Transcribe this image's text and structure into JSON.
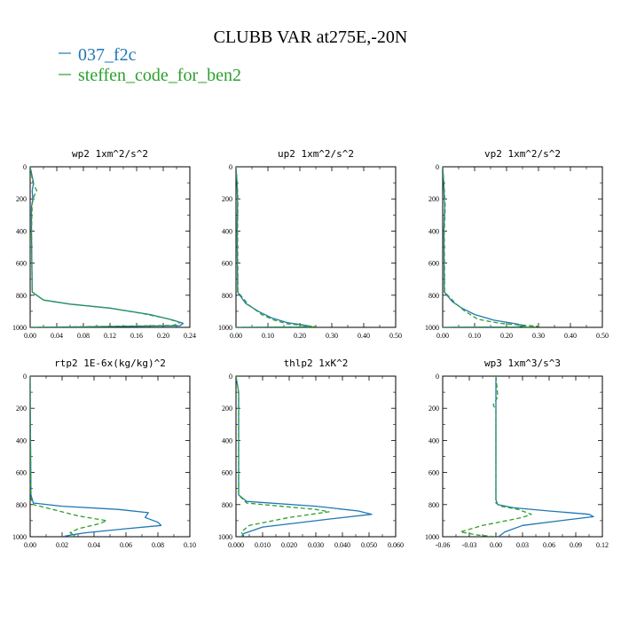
{
  "title": "CLUBB VAR at275E,-20N",
  "legend": [
    {
      "label": "037_f2c",
      "color": "#1f77b4"
    },
    {
      "label": "steffen_code_for_ben2",
      "color": "#2ca02c"
    }
  ],
  "chart_data": [
    {
      "type": "line",
      "title": "wp2  1xm^2/s^2",
      "xlim": [
        0,
        0.24
      ],
      "ylim": [
        1000,
        0
      ],
      "xticks": [
        "0.00",
        "0.04",
        "0.08",
        "0.12",
        "0.16",
        "0.20",
        "0.24"
      ],
      "yticks": [
        "0",
        "200",
        "400",
        "600",
        "800",
        "1000"
      ],
      "series": [
        {
          "name": "037_f2c",
          "color": "#1f77b4",
          "dash": "none",
          "x": [
            0,
            0.005,
            0.003,
            0.004,
            0.002,
            0.002,
            0.003,
            0.02,
            0.06,
            0.12,
            0.18,
            0.215,
            0.23,
            0.225,
            0.05,
            0
          ],
          "y": [
            0,
            100,
            150,
            200,
            250,
            400,
            780,
            830,
            855,
            880,
            920,
            955,
            975,
            990,
            998,
            1000
          ]
        },
        {
          "name": "steffen_code_for_ben2",
          "color": "#2ca02c",
          "dash": "5,3",
          "x": [
            0,
            0.004,
            0.01,
            0.006,
            0.003,
            0.002,
            0.003,
            0.02,
            0.06,
            0.12,
            0.17,
            0.205,
            0.225,
            0.215,
            0.04,
            0
          ],
          "y": [
            0,
            100,
            150,
            180,
            230,
            400,
            780,
            830,
            855,
            880,
            915,
            945,
            970,
            988,
            998,
            1000
          ]
        }
      ]
    },
    {
      "type": "line",
      "title": "up2  1xm^2/s^2",
      "xlim": [
        0,
        0.5
      ],
      "ylim": [
        1000,
        0
      ],
      "xticks": [
        "0.00",
        "0.10",
        "0.20",
        "0.30",
        "0.40",
        "0.50"
      ],
      "yticks": [
        "0",
        "200",
        "400",
        "600",
        "800",
        "1000"
      ],
      "series": [
        {
          "name": "037_f2c",
          "color": "#1f77b4",
          "dash": "none",
          "x": [
            0,
            0.003,
            0.005,
            0.004,
            0.005,
            0.03,
            0.07,
            0.11,
            0.16,
            0.21,
            0.23,
            0.21,
            0
          ],
          "y": [
            0,
            100,
            200,
            400,
            780,
            850,
            900,
            940,
            970,
            985,
            992,
            997,
            1000
          ]
        },
        {
          "name": "steffen_code_for_ben2",
          "color": "#2ca02c",
          "dash": "5,3",
          "x": [
            0,
            0.004,
            0.006,
            0.005,
            0.006,
            0.04,
            0.08,
            0.12,
            0.16,
            0.22,
            0.25,
            0.22,
            0
          ],
          "y": [
            0,
            100,
            200,
            400,
            780,
            860,
            920,
            955,
            978,
            990,
            995,
            998,
            1000
          ]
        }
      ]
    },
    {
      "type": "line",
      "title": "vp2  1xm^2/s^2",
      "xlim": [
        0,
        0.5
      ],
      "ylim": [
        1000,
        0
      ],
      "xticks": [
        "0.00",
        "0.10",
        "0.20",
        "0.30",
        "0.40",
        "0.50"
      ],
      "yticks": [
        "0",
        "200",
        "400",
        "600",
        "800",
        "1000"
      ],
      "series": [
        {
          "name": "037_f2c",
          "color": "#1f77b4",
          "dash": "none",
          "x": [
            0,
            0.003,
            0.006,
            0.004,
            0.005,
            0.03,
            0.06,
            0.1,
            0.16,
            0.23,
            0.26,
            0.23,
            0
          ],
          "y": [
            0,
            100,
            250,
            400,
            780,
            840,
            880,
            920,
            955,
            978,
            990,
            997,
            1000
          ]
        },
        {
          "name": "steffen_code_for_ben2",
          "color": "#2ca02c",
          "dash": "5,3",
          "x": [
            0,
            0.004,
            0.008,
            0.005,
            0.006,
            0.04,
            0.07,
            0.11,
            0.18,
            0.26,
            0.3,
            0.26,
            0
          ],
          "y": [
            0,
            100,
            250,
            400,
            780,
            850,
            900,
            950,
            975,
            988,
            994,
            998,
            1000
          ]
        }
      ]
    },
    {
      "type": "line",
      "title": "rtp2  1E-6x(kg/kg)^2",
      "xlim": [
        0,
        0.1
      ],
      "ylim": [
        1000,
        0
      ],
      "xticks": [
        "0.00",
        "0.02",
        "0.04",
        "0.06",
        "0.08",
        "0.10"
      ],
      "yticks": [
        "0",
        "200",
        "400",
        "600",
        "800",
        "1000"
      ],
      "series": [
        {
          "name": "037_f2c",
          "color": "#1f77b4",
          "dash": "none",
          "x": [
            0,
            0.0002,
            0.0005,
            0.002,
            0.02,
            0.055,
            0.074,
            0.072,
            0.08,
            0.082,
            0.06,
            0.035,
            0.025,
            0.02
          ],
          "y": [
            0,
            400,
            740,
            790,
            810,
            830,
            850,
            880,
            910,
            930,
            950,
            975,
            990,
            1000
          ]
        },
        {
          "name": "steffen_code_for_ben2",
          "color": "#2ca02c",
          "dash": "5,3",
          "x": [
            0,
            0.0002,
            0.0005,
            0.002,
            0.018,
            0.03,
            0.042,
            0.048,
            0.043,
            0.03,
            0.025,
            0.028,
            0.027
          ],
          "y": [
            0,
            400,
            760,
            800,
            840,
            870,
            890,
            900,
            920,
            950,
            975,
            990,
            1000
          ]
        }
      ]
    },
    {
      "type": "line",
      "title": "thlp2  1xK^2",
      "xlim": [
        0,
        0.06
      ],
      "ylim": [
        1000,
        0
      ],
      "xticks": [
        "0.000",
        "0.010",
        "0.020",
        "0.030",
        "0.040",
        "0.050",
        "0.060"
      ],
      "yticks": [
        "0",
        "200",
        "400",
        "600",
        "800",
        "1000"
      ],
      "series": [
        {
          "name": "037_f2c",
          "color": "#1f77b4",
          "dash": "none",
          "x": [
            0,
            0.001,
            0.001,
            0.001,
            0.004,
            0.03,
            0.046,
            0.051,
            0.035,
            0.01,
            0.003,
            0.002
          ],
          "y": [
            0,
            100,
            400,
            740,
            780,
            810,
            840,
            860,
            890,
            940,
            980,
            1000
          ]
        },
        {
          "name": "steffen_code_for_ben2",
          "color": "#2ca02c",
          "dash": "5,3",
          "x": [
            0,
            0.001,
            0.001,
            0.001,
            0.004,
            0.02,
            0.03,
            0.035,
            0.02,
            0.005,
            0.002,
            0.003
          ],
          "y": [
            0,
            100,
            400,
            740,
            790,
            815,
            830,
            845,
            880,
            930,
            970,
            1000
          ]
        }
      ]
    },
    {
      "type": "line",
      "title": "wp3  1xm^3/s^3",
      "xlim": [
        -0.06,
        0.12
      ],
      "ylim": [
        1000,
        0
      ],
      "xticks": [
        "-0.06",
        "-0.03",
        "0.00",
        "0.03",
        "0.06",
        "0.09",
        "0.12"
      ],
      "yticks": [
        "0",
        "200",
        "400",
        "600",
        "800",
        "1000"
      ],
      "series": [
        {
          "name": "037_f2c",
          "color": "#1f77b4",
          "dash": "none",
          "x": [
            0,
            0,
            0,
            0,
            0.002,
            0.02,
            0.06,
            0.105,
            0.11,
            0.08,
            0.03,
            0.01,
            0.003
          ],
          "y": [
            0,
            200,
            400,
            770,
            800,
            820,
            840,
            860,
            875,
            895,
            930,
            970,
            1000
          ]
        },
        {
          "name": "steffen_code_for_ben2",
          "color": "#2ca02c",
          "dash": "5,3",
          "x": [
            0,
            0.002,
            0.001,
            -0.003,
            0.0,
            0.0,
            0.0,
            0.0,
            0.005,
            0.025,
            0.04,
            0.03,
            -0.015,
            -0.04,
            -0.02,
            0
          ],
          "y": [
            0,
            120,
            140,
            180,
            210,
            400,
            760,
            790,
            810,
            830,
            860,
            880,
            930,
            970,
            990,
            1000
          ]
        }
      ]
    }
  ]
}
